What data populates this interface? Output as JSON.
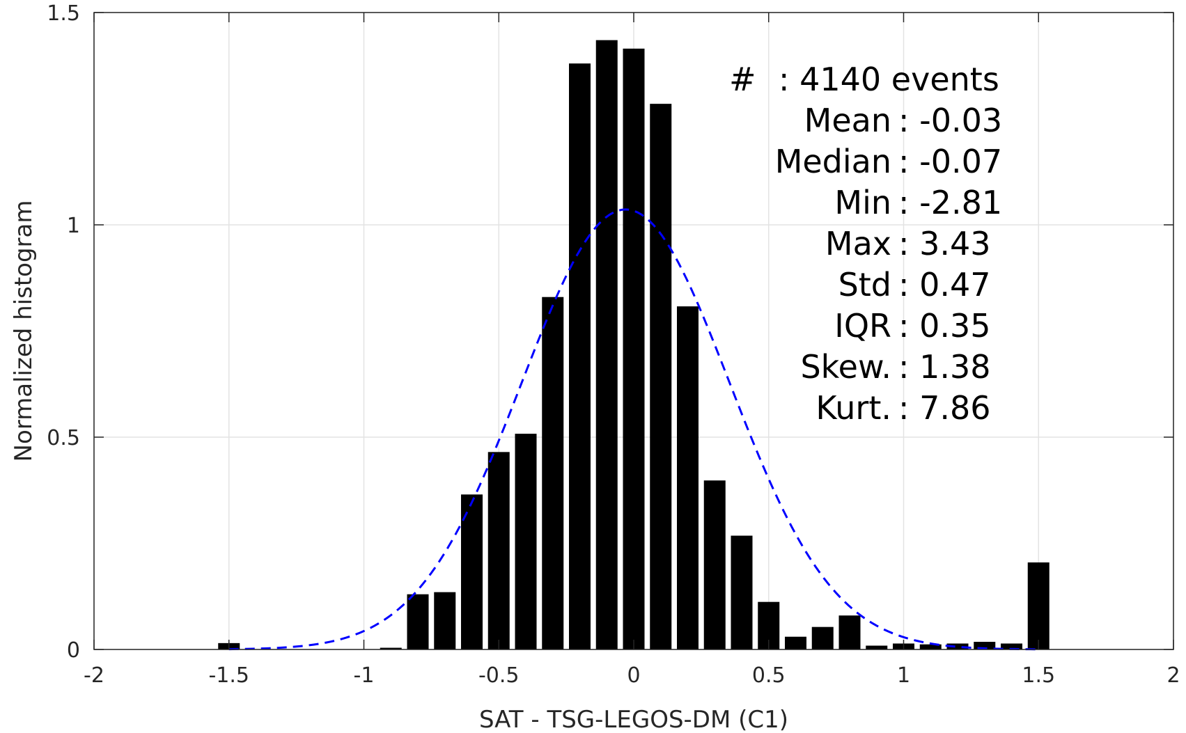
{
  "chart_data": {
    "type": "bar",
    "xlabel": "SAT - TSG-LEGOS-DM (C1)",
    "ylabel": "Normalized histogram",
    "xlim": [
      -2,
      2
    ],
    "ylim": [
      0,
      1.5
    ],
    "xticks": [
      "-2",
      "-1.5",
      "-1",
      "-0.5",
      "0",
      "0.5",
      "1",
      "1.5",
      "2"
    ],
    "yticks": [
      "0",
      "0.5",
      "1",
      "1.5"
    ],
    "grid": true,
    "bar_color": "#000000",
    "bin_width": 0.1,
    "bars": [
      {
        "x": -1.5,
        "y": 0.015
      },
      {
        "x": -1.4,
        "y": 0.0
      },
      {
        "x": -1.3,
        "y": 0.0
      },
      {
        "x": -1.2,
        "y": 0.0
      },
      {
        "x": -1.1,
        "y": 0.0
      },
      {
        "x": -1.0,
        "y": 0.0
      },
      {
        "x": -0.9,
        "y": 0.004
      },
      {
        "x": -0.8,
        "y": 0.13
      },
      {
        "x": -0.7,
        "y": 0.135
      },
      {
        "x": -0.6,
        "y": 0.365
      },
      {
        "x": -0.5,
        "y": 0.465
      },
      {
        "x": -0.4,
        "y": 0.508
      },
      {
        "x": -0.3,
        "y": 0.83
      },
      {
        "x": -0.2,
        "y": 1.38
      },
      {
        "x": -0.1,
        "y": 1.435
      },
      {
        "x": 0.0,
        "y": 1.415
      },
      {
        "x": 0.1,
        "y": 1.285
      },
      {
        "x": 0.2,
        "y": 0.808
      },
      {
        "x": 0.3,
        "y": 0.398
      },
      {
        "x": 0.4,
        "y": 0.268
      },
      {
        "x": 0.5,
        "y": 0.112
      },
      {
        "x": 0.6,
        "y": 0.03
      },
      {
        "x": 0.7,
        "y": 0.053
      },
      {
        "x": 0.8,
        "y": 0.08
      },
      {
        "x": 0.9,
        "y": 0.009
      },
      {
        "x": 1.0,
        "y": 0.014
      },
      {
        "x": 1.1,
        "y": 0.012
      },
      {
        "x": 1.2,
        "y": 0.014
      },
      {
        "x": 1.3,
        "y": 0.018
      },
      {
        "x": 1.4,
        "y": 0.014
      },
      {
        "x": 1.5,
        "y": 0.205
      }
    ],
    "fit": {
      "kind": "normal",
      "mean": -0.03,
      "std": 0.385,
      "x_range": [
        -1.5,
        1.5
      ],
      "color": "#0000ff",
      "style": "dashed"
    },
    "stats": [
      {
        "key": "#",
        "value": ": 4140 events"
      },
      {
        "key": "Mean",
        "value": ": -0.03"
      },
      {
        "key": "Median",
        "value": ": -0.07"
      },
      {
        "key": "Min",
        "value": ": -2.81"
      },
      {
        "key": "Max",
        "value": ": 3.43"
      },
      {
        "key": "Std",
        "value": ": 0.47"
      },
      {
        "key": "IQR",
        "value": ": 0.35"
      },
      {
        "key": "Skew.",
        "value": ": 1.38"
      },
      {
        "key": "Kurt.",
        "value": ": 7.86"
      }
    ]
  }
}
